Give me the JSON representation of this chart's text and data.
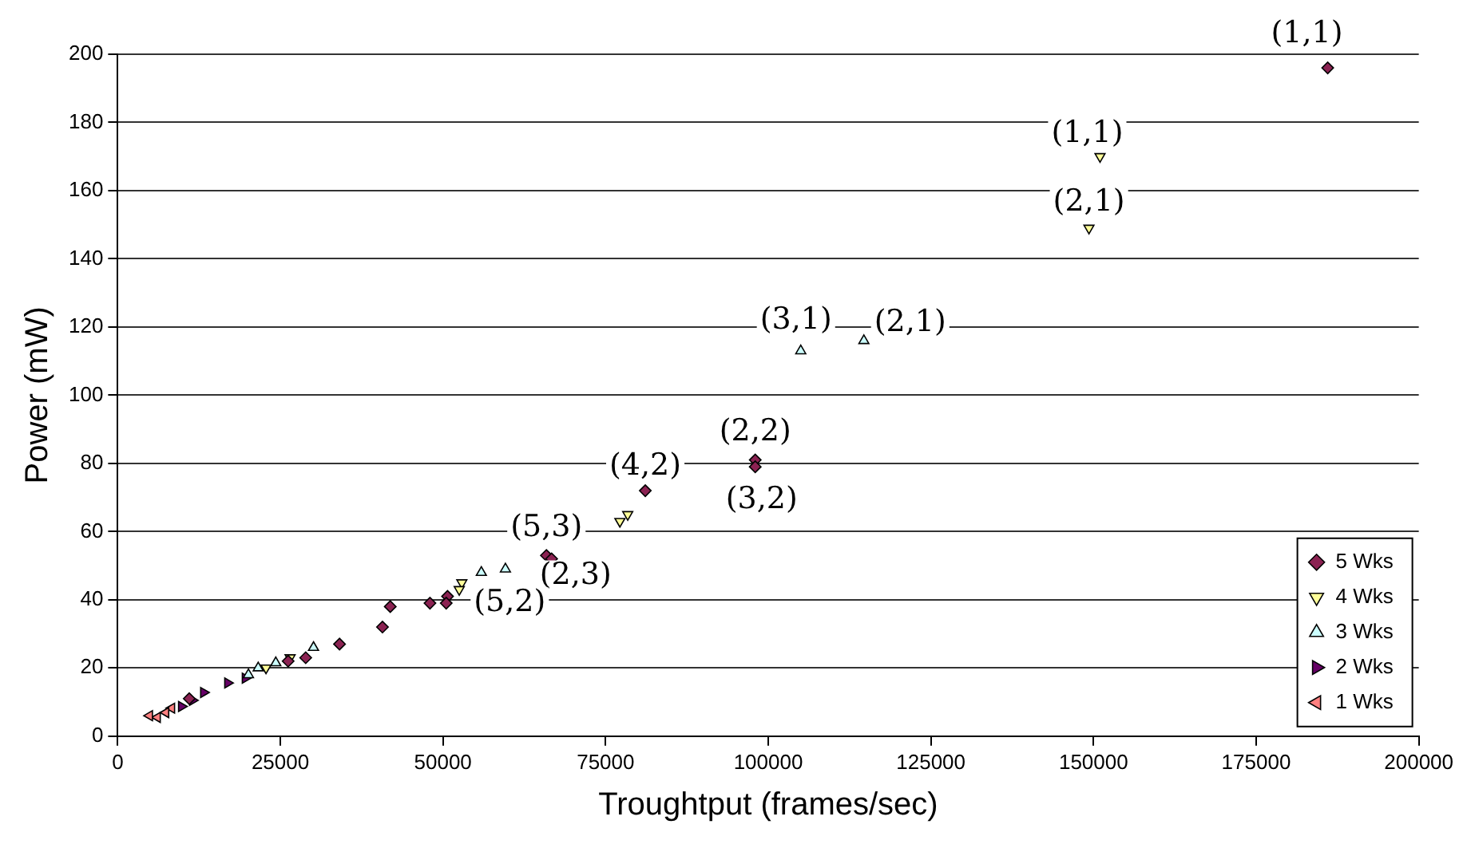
{
  "chart_data": {
    "type": "scatter",
    "xlabel": "Troughtput (frames/sec)",
    "ylabel": "Power (mW)",
    "xlim": [
      0,
      200000
    ],
    "xticks": [
      0,
      25000,
      50000,
      75000,
      100000,
      125000,
      150000,
      175000,
      200000
    ],
    "ylim": [
      0,
      200
    ],
    "yticks": [
      0,
      20,
      40,
      60,
      80,
      100,
      120,
      140,
      160,
      180,
      200
    ],
    "grid": "y",
    "legend": "bottom right",
    "series": [
      {
        "name": "5 Wks",
        "color": "#8b2252",
        "marker": "diamond",
        "x": [
          186000,
          98000,
          98000,
          81100,
          65900,
          66700,
          50700,
          50500,
          48000,
          41900,
          40700,
          34100,
          28900,
          26200,
          11000
        ],
        "values": [
          196,
          81,
          79,
          72,
          53,
          52,
          41,
          39,
          39,
          38,
          32,
          27,
          23,
          22,
          11
        ]
      },
      {
        "name": "4 Wks",
        "color": "#ffff99",
        "marker": "triangle",
        "x": [
          151000,
          149300,
          78400,
          77200,
          52900,
          52500,
          26500,
          22800
        ],
        "values": [
          170,
          149,
          65,
          63,
          45,
          43,
          23,
          20
        ]
      },
      {
        "name": "3 Wks",
        "color": "#ccffff",
        "marker": "triangle",
        "x": [
          114700,
          105000,
          59600,
          55900,
          30100,
          24300,
          21600,
          20100
        ],
        "values": [
          116,
          113,
          49,
          48,
          26,
          21.5,
          20,
          18
        ]
      },
      {
        "name": "2 Wks",
        "color": "#660066",
        "marker": "triangle",
        "x": [
          19600,
          16900,
          13200,
          11500,
          9800
        ],
        "values": [
          17,
          15.6,
          12.8,
          10.5,
          8.7
        ]
      },
      {
        "name": "1 Wks",
        "color": "#ff8080",
        "marker": "triangle",
        "x": [
          8300,
          7400,
          6100,
          4900
        ],
        "values": [
          8.2,
          6.9,
          5.5,
          6
        ]
      }
    ],
    "annotations": [
      {
        "text": "(1,1)",
        "x": 186000,
        "y": 196
      },
      {
        "text": "(1,1)",
        "x": 151000,
        "y": 170
      },
      {
        "text": "(2,1)",
        "x": 149300,
        "y": 149
      },
      {
        "text": "(3,1)",
        "x": 105000,
        "y": 113
      },
      {
        "text": "(2,1)",
        "x": 114700,
        "y": 116
      },
      {
        "text": "(2,2)",
        "x": 98000,
        "y": 81
      },
      {
        "text": "(3,2)",
        "x": 98000,
        "y": 79
      },
      {
        "text": "(4,2)",
        "x": 81100,
        "y": 72
      },
      {
        "text": "(5,3)",
        "x": 65900,
        "y": 53
      },
      {
        "text": "(2,3)",
        "x": 66700,
        "y": 52
      },
      {
        "text": "(5,2)",
        "x": 52900,
        "y": 45
      }
    ]
  }
}
